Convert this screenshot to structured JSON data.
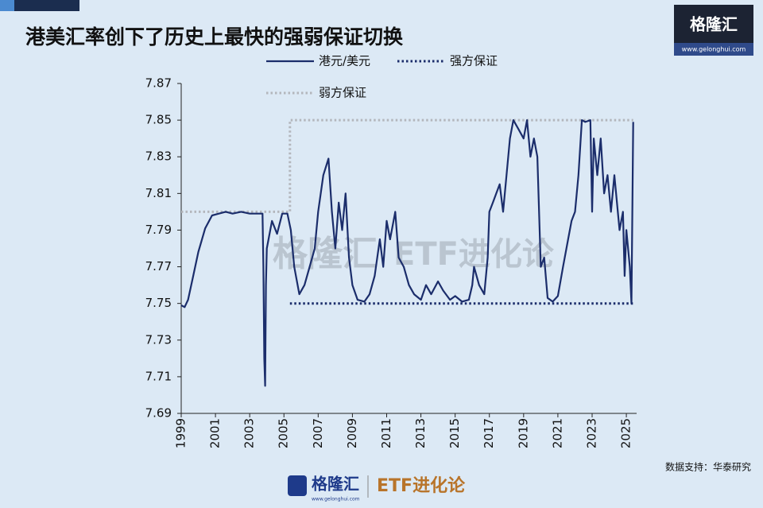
{
  "chart_data": {
    "type": "line",
    "title": "港美汇率创下了历史上最快的强弱保证切换",
    "source": "数据支持：华泰研究",
    "logo": {
      "brand": "格隆汇",
      "url": "www.gelonghui.com"
    },
    "watermark": {
      "brand": "格隆汇",
      "sub": "ETF进化论"
    },
    "footer_logo": {
      "brand": "格隆汇",
      "sub": "ETF进化论",
      "url": "www.gelonghui.com"
    },
    "xlim": [
      1999,
      2025.6
    ],
    "xticks": [
      1999,
      2001,
      2003,
      2005,
      2007,
      2009,
      2011,
      2013,
      2015,
      2017,
      2019,
      2021,
      2023,
      2025
    ],
    "ylim": [
      7.69,
      7.87
    ],
    "yticks": [
      7.69,
      7.71,
      7.73,
      7.75,
      7.77,
      7.79,
      7.81,
      7.83,
      7.85,
      7.87
    ],
    "series": [
      {
        "name": "港元/美元",
        "color": "#1b2d6b",
        "dash": "solid",
        "x": [
          1999.0,
          1999.2,
          1999.4,
          1999.7,
          2000.0,
          2000.4,
          2000.8,
          2001.2,
          2001.6,
          2002.0,
          2002.5,
          2003.0,
          2003.5,
          2003.75,
          2003.8,
          2003.85,
          2003.9,
          2003.95,
          2004.0,
          2004.3,
          2004.6,
          2004.9,
          2005.2,
          2005.4,
          2005.6,
          2005.9,
          2006.2,
          2006.5,
          2006.8,
          2007.0,
          2007.3,
          2007.6,
          2007.8,
          2008.0,
          2008.2,
          2008.4,
          2008.6,
          2008.8,
          2009.0,
          2009.3,
          2009.7,
          2010.0,
          2010.3,
          2010.6,
          2010.8,
          2011.0,
          2011.2,
          2011.5,
          2011.7,
          2012.0,
          2012.3,
          2012.6,
          2013.0,
          2013.3,
          2013.6,
          2014.0,
          2014.3,
          2014.7,
          2015.0,
          2015.4,
          2015.8,
          2016.0,
          2016.1,
          2016.4,
          2016.7,
          2016.9,
          2017.0,
          2017.2,
          2017.4,
          2017.6,
          2017.8,
          2018.0,
          2018.2,
          2018.4,
          2018.7,
          2019.0,
          2019.2,
          2019.4,
          2019.6,
          2019.8,
          2020.0,
          2020.2,
          2020.4,
          2020.7,
          2021.0,
          2021.3,
          2021.6,
          2021.8,
          2022.0,
          2022.2,
          2022.4,
          2022.6,
          2022.9,
          2023.0,
          2023.1,
          2023.3,
          2023.5,
          2023.7,
          2023.9,
          2024.1,
          2024.3,
          2024.6,
          2024.8,
          2024.9,
          2025.0,
          2025.2,
          2025.3,
          2025.4
        ],
        "values": [
          7.749,
          7.748,
          7.752,
          7.765,
          7.778,
          7.791,
          7.798,
          7.799,
          7.8,
          7.799,
          7.8,
          7.799,
          7.799,
          7.799,
          7.77,
          7.72,
          7.705,
          7.76,
          7.78,
          7.795,
          7.788,
          7.799,
          7.799,
          7.79,
          7.77,
          7.755,
          7.76,
          7.77,
          7.78,
          7.8,
          7.82,
          7.829,
          7.8,
          7.78,
          7.805,
          7.79,
          7.81,
          7.775,
          7.76,
          7.752,
          7.751,
          7.755,
          7.765,
          7.785,
          7.77,
          7.795,
          7.785,
          7.8,
          7.775,
          7.77,
          7.76,
          7.755,
          7.752,
          7.76,
          7.755,
          7.762,
          7.757,
          7.752,
          7.754,
          7.751,
          7.752,
          7.76,
          7.77,
          7.76,
          7.755,
          7.775,
          7.8,
          7.805,
          7.81,
          7.815,
          7.8,
          7.82,
          7.84,
          7.85,
          7.845,
          7.84,
          7.85,
          7.83,
          7.84,
          7.83,
          7.77,
          7.775,
          7.753,
          7.751,
          7.754,
          7.77,
          7.785,
          7.795,
          7.8,
          7.82,
          7.85,
          7.849,
          7.85,
          7.8,
          7.84,
          7.82,
          7.84,
          7.81,
          7.82,
          7.8,
          7.82,
          7.79,
          7.8,
          7.765,
          7.79,
          7.77,
          7.75,
          7.849
        ]
      },
      {
        "name": "强方保证",
        "color": "#1b2d6b",
        "dash": "dotted",
        "x": [
          2005.35,
          2025.4
        ],
        "values": [
          7.75,
          7.75
        ]
      },
      {
        "name": "弱方保证",
        "color": "#b3b6bc",
        "dash": "dotted",
        "x": [
          1999,
          2005.35,
          2005.35,
          2025.4
        ],
        "values": [
          7.8,
          7.8,
          7.85,
          7.85
        ]
      }
    ]
  }
}
